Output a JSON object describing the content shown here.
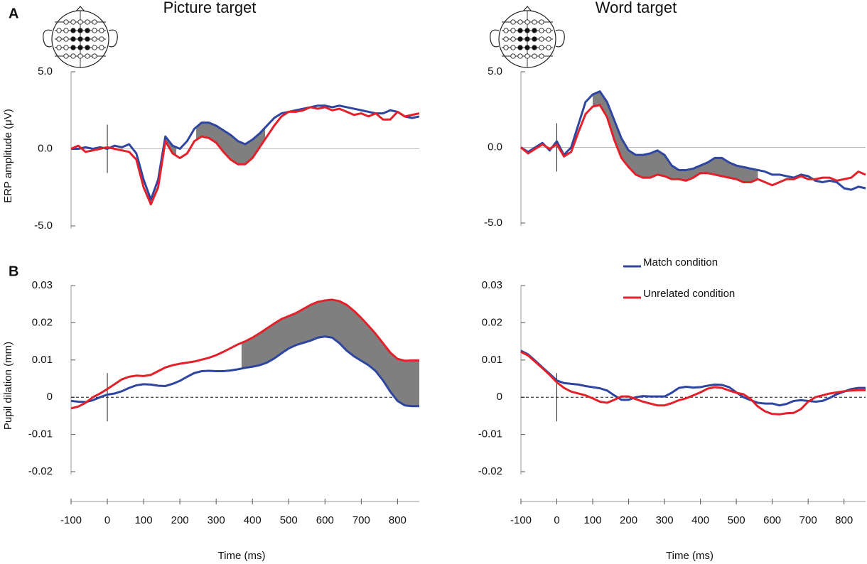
{
  "panel_labels": [
    "A",
    "B"
  ],
  "chart_data": [
    {
      "type": "line",
      "title": "Picture target",
      "ylabel": "ERP amplitude (μV)",
      "x": [
        -100,
        -80,
        -60,
        -40,
        -20,
        0,
        20,
        40,
        60,
        80,
        100,
        120,
        140,
        160,
        180,
        200,
        220,
        240,
        260,
        280,
        300,
        320,
        340,
        360,
        380,
        400,
        420,
        440,
        460,
        480,
        500,
        520,
        540,
        560,
        580,
        600,
        620,
        640,
        660,
        680,
        700,
        720,
        740,
        760,
        780,
        800,
        820,
        840,
        860
      ],
      "xlim": [
        -100,
        860
      ],
      "ylim": [
        -5,
        5
      ],
      "yticks": [
        {
          "value": 5,
          "label": "5.0"
        },
        {
          "value": 0,
          "label": "0.0"
        },
        {
          "value": -5,
          "label": "-5.0"
        }
      ],
      "hline": 0,
      "hline_style": "solid",
      "vline": 0,
      "shaded": [
        [
          160,
          190
        ],
        [
          245,
          435
        ]
      ],
      "series": [
        {
          "color": "#2e46a0",
          "values": [
            0,
            0,
            0.1,
            0,
            0.1,
            0,
            0.2,
            0.1,
            0.3,
            -0.3,
            -2.0,
            -3.3,
            -2.0,
            0.8,
            0.2,
            0,
            0.5,
            1.3,
            1.7,
            1.7,
            1.5,
            1.2,
            0.9,
            0.5,
            0.3,
            0.6,
            1.0,
            1.5,
            2.0,
            2.3,
            2.4,
            2.5,
            2.6,
            2.7,
            2.8,
            2.8,
            2.7,
            2.8,
            2.7,
            2.6,
            2.5,
            2.4,
            2.3,
            2.3,
            2.5,
            2.4,
            2.1,
            2.0,
            2.1
          ]
        },
        {
          "color": "#e3212b",
          "values": [
            0,
            0.2,
            -0.2,
            -0.1,
            0,
            0.1,
            0,
            -0.1,
            -0.2,
            -0.7,
            -2.5,
            -3.6,
            -2.5,
            0.5,
            -0.3,
            -0.6,
            -0.3,
            0.5,
            0.8,
            0.7,
            0.4,
            -0.2,
            -0.7,
            -1.0,
            -1.0,
            -0.6,
            0.1,
            0.8,
            1.5,
            2.1,
            2.4,
            2.4,
            2.5,
            2.7,
            2.6,
            2.7,
            2.5,
            2.6,
            2.4,
            2.2,
            2.3,
            2.1,
            2.3,
            1.9,
            1.9,
            2.4,
            2.1,
            2.2,
            2.3
          ]
        }
      ]
    },
    {
      "type": "line",
      "title": "Word target",
      "x": [
        -100,
        -80,
        -60,
        -40,
        -20,
        0,
        20,
        40,
        60,
        80,
        100,
        120,
        140,
        160,
        180,
        200,
        220,
        240,
        260,
        280,
        300,
        320,
        340,
        360,
        380,
        400,
        420,
        440,
        460,
        480,
        500,
        520,
        540,
        560,
        580,
        600,
        620,
        640,
        660,
        680,
        700,
        720,
        740,
        760,
        780,
        800,
        820,
        840,
        860
      ],
      "xlim": [
        -100,
        860
      ],
      "ylim": [
        -5,
        5
      ],
      "yticks": [
        {
          "value": 5,
          "label": "5.0"
        },
        {
          "value": 0,
          "label": "0.0"
        },
        {
          "value": -5,
          "label": "-5.0"
        }
      ],
      "hline": 0,
      "hline_style": "solid",
      "vline": 0,
      "shaded": [
        [
          100,
          560
        ]
      ],
      "series": [
        {
          "color": "#2e46a0",
          "values": [
            0,
            -0.3,
            0,
            0.3,
            -0.2,
            0.4,
            -0.5,
            0,
            1.5,
            3.0,
            3.5,
            3.7,
            3.0,
            1.8,
            0.6,
            -0.2,
            -0.5,
            -0.5,
            -0.4,
            -0.2,
            -0.5,
            -1.2,
            -1.5,
            -1.5,
            -1.4,
            -1.2,
            -1.0,
            -0.7,
            -0.7,
            -1.0,
            -1.2,
            -1.3,
            -1.4,
            -1.5,
            -1.6,
            -1.8,
            -1.8,
            -1.9,
            -2.0,
            -1.8,
            -1.9,
            -2.2,
            -2.3,
            -2.2,
            -2.3,
            -2.7,
            -2.8,
            -2.6,
            -2.7
          ]
        },
        {
          "color": "#e3212b",
          "values": [
            0,
            -0.4,
            -0.1,
            0.2,
            -0.1,
            0.2,
            -0.6,
            -0.3,
            1.0,
            2.2,
            2.7,
            2.8,
            2.0,
            0.5,
            -0.7,
            -1.3,
            -1.8,
            -2.0,
            -2.0,
            -1.8,
            -1.9,
            -2.1,
            -2.1,
            -2.2,
            -2.0,
            -1.7,
            -1.7,
            -1.8,
            -1.9,
            -2.0,
            -2.1,
            -2.3,
            -2.3,
            -2.1,
            -2.3,
            -2.5,
            -2.3,
            -2.1,
            -2.1,
            -1.9,
            -2.1,
            -2.1,
            -2.0,
            -2.0,
            -2.2,
            -2.1,
            -2.0,
            -1.6,
            -1.8
          ]
        }
      ]
    },
    {
      "type": "line",
      "ylabel": "Pupil dilation (mm)",
      "xlabel": "Time (ms)",
      "x": [
        -100,
        -80,
        -60,
        -40,
        -20,
        0,
        20,
        40,
        60,
        80,
        100,
        120,
        140,
        160,
        180,
        200,
        220,
        240,
        260,
        280,
        300,
        320,
        340,
        360,
        380,
        400,
        420,
        440,
        460,
        480,
        500,
        520,
        540,
        560,
        580,
        600,
        620,
        640,
        660,
        680,
        700,
        720,
        740,
        760,
        780,
        800,
        820,
        840,
        860
      ],
      "xlim": [
        -100,
        860
      ],
      "ylim": [
        -0.02,
        0.03
      ],
      "xticks": [
        -100,
        0,
        100,
        200,
        300,
        400,
        500,
        600,
        700,
        800
      ],
      "yticks": [
        0.03,
        0.02,
        0.01,
        0,
        -0.01,
        -0.02
      ],
      "hline": 0,
      "hline_style": "dashed",
      "vline": 0,
      "shaded": [
        [
          370,
          860
        ]
      ],
      "series": [
        {
          "color": "#2e46a0",
          "values": [
            -0.001,
            -0.0012,
            -0.0013,
            -0.0008,
            0,
            0.0007,
            0.001,
            0.0016,
            0.0025,
            0.0032,
            0.0035,
            0.0034,
            0.0031,
            0.003,
            0.0036,
            0.0044,
            0.0055,
            0.0065,
            0.007,
            0.0071,
            0.007,
            0.007,
            0.0072,
            0.0075,
            0.0079,
            0.0082,
            0.0086,
            0.0093,
            0.0104,
            0.0118,
            0.0131,
            0.014,
            0.0146,
            0.0152,
            0.016,
            0.0163,
            0.016,
            0.0145,
            0.0125,
            0.011,
            0.0098,
            0.0086,
            0.007,
            0.0045,
            0.0015,
            -0.001,
            -0.0022,
            -0.0024,
            -0.0024
          ]
        },
        {
          "color": "#e3212b",
          "values": [
            -0.003,
            -0.0025,
            -0.0015,
            0,
            0.001,
            0.0022,
            0.0035,
            0.0048,
            0.0055,
            0.0058,
            0.0057,
            0.006,
            0.007,
            0.008,
            0.0086,
            0.009,
            0.0093,
            0.0096,
            0.0101,
            0.0106,
            0.0113,
            0.0122,
            0.0132,
            0.0142,
            0.015,
            0.016,
            0.0172,
            0.0185,
            0.0198,
            0.021,
            0.0218,
            0.0226,
            0.0237,
            0.0248,
            0.0256,
            0.026,
            0.0262,
            0.0258,
            0.0248,
            0.0232,
            0.0213,
            0.0192,
            0.017,
            0.0145,
            0.012,
            0.0103,
            0.0098,
            0.0099,
            0.0099
          ]
        }
      ]
    },
    {
      "type": "line",
      "xlabel": "Time (ms)",
      "legend": "top",
      "x": [
        -100,
        -80,
        -60,
        -40,
        -20,
        0,
        20,
        40,
        60,
        80,
        100,
        120,
        140,
        160,
        180,
        200,
        220,
        240,
        260,
        280,
        300,
        320,
        340,
        360,
        380,
        400,
        420,
        440,
        460,
        480,
        500,
        520,
        540,
        560,
        580,
        600,
        620,
        640,
        660,
        680,
        700,
        720,
        740,
        760,
        780,
        800,
        820,
        840,
        860
      ],
      "xlim": [
        -100,
        860
      ],
      "ylim": [
        -0.02,
        0.03
      ],
      "xticks": [
        -100,
        0,
        100,
        200,
        300,
        400,
        500,
        600,
        700,
        800
      ],
      "yticks": [
        0.03,
        0.02,
        0.01,
        0,
        -0.01,
        -0.02
      ],
      "hline": 0,
      "hline_style": "dashed",
      "vline": 0,
      "shaded": [],
      "series": [
        {
          "name": "Match condition",
          "color": "#2e46a0",
          "values": [
            0.0125,
            0.0115,
            0.0098,
            0.008,
            0.0063,
            0.0045,
            0.0038,
            0.0036,
            0.0034,
            0.003,
            0.0027,
            0.0024,
            0.0018,
            0.0005,
            -0.0007,
            -0.0007,
            0,
            0.0003,
            0.0002,
            0.0002,
            0.0002,
            0.0012,
            0.0025,
            0.0028,
            0.0026,
            0.0027,
            0.0031,
            0.0034,
            0.0033,
            0.0027,
            0.0013,
            0,
            -0.0008,
            -0.0015,
            -0.0017,
            -0.0017,
            -0.0022,
            -0.0018,
            -0.001,
            -0.0008,
            -0.001,
            -0.0012,
            -0.001,
            -0.0002,
            0.0008,
            0.0015,
            0.0022,
            0.0025,
            0.0025
          ]
        },
        {
          "name": "Unrelated condition",
          "color": "#e3212b",
          "values": [
            0.0122,
            0.0112,
            0.0095,
            0.0078,
            0.006,
            0.004,
            0.0025,
            0.0015,
            0.001,
            0.0005,
            -0.0003,
            -0.0012,
            -0.0015,
            -0.0007,
            0.0002,
            0.0002,
            -0.0005,
            -0.0012,
            -0.0017,
            -0.0022,
            -0.0022,
            -0.0016,
            -0.0008,
            -0.0003,
            0.0005,
            0.0013,
            0.0023,
            0.0027,
            0.0025,
            0.0018,
            0.0012,
            0.0008,
            -0.0005,
            -0.0025,
            -0.0038,
            -0.0045,
            -0.0046,
            -0.0043,
            -0.0042,
            -0.0032,
            -0.0012,
            0,
            0.0005,
            0.001,
            0.0013,
            0.0016,
            0.0018,
            0.0019,
            0.0019
          ]
        }
      ]
    }
  ]
}
